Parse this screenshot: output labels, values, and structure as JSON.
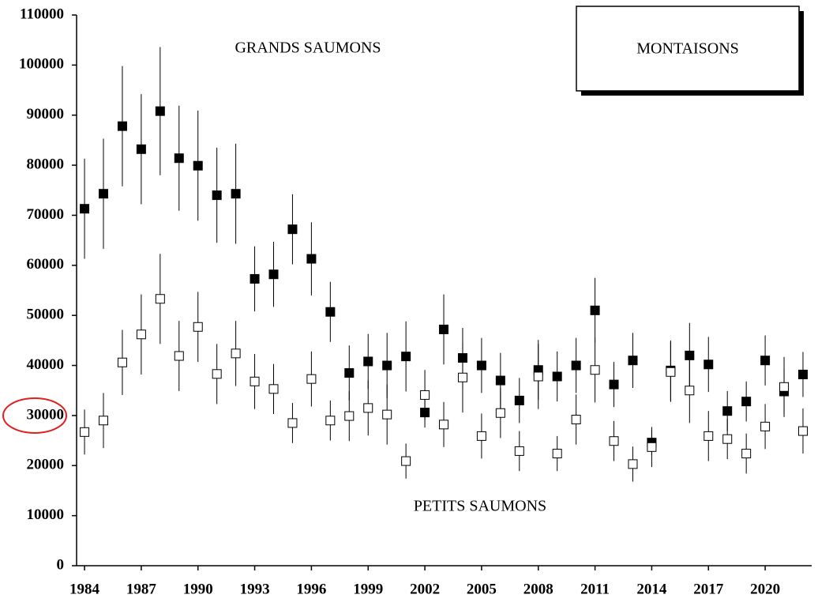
{
  "chart_data": {
    "type": "scatter",
    "title": "MONTAISONS",
    "x": [
      1984,
      1985,
      1986,
      1987,
      1988,
      1989,
      1990,
      1991,
      1992,
      1993,
      1994,
      1995,
      1996,
      1997,
      1998,
      1999,
      2000,
      2001,
      2002,
      2003,
      2004,
      2005,
      2006,
      2007,
      2008,
      2009,
      2010,
      2011,
      2012,
      2013,
      2014,
      2015,
      2016,
      2017,
      2018,
      2019,
      2020,
      2021,
      2022
    ],
    "series": [
      {
        "name": "GRANDS SAUMONS",
        "color": "#000000",
        "marker": "filled",
        "values": [
          71300,
          74300,
          87800,
          83200,
          90800,
          81400,
          79900,
          74000,
          74300,
          57300,
          58200,
          67200,
          61300,
          50700,
          38500,
          40800,
          40000,
          41800,
          30600,
          47200,
          41500,
          40000,
          37000,
          33000,
          39100,
          37800,
          40000,
          51000,
          36200,
          41000,
          24600,
          39000,
          42000,
          40200,
          30900,
          32800,
          41000,
          34800,
          38200
        ],
        "errors": [
          10000,
          11000,
          12000,
          11000,
          12800,
          10500,
          11000,
          9500,
          10000,
          6500,
          6500,
          7000,
          7300,
          6000,
          5500,
          5500,
          6500,
          7000,
          3000,
          7000,
          6000,
          5500,
          5500,
          4500,
          6000,
          5000,
          5500,
          6500,
          4500,
          5500,
          2500,
          6000,
          6500,
          5500,
          4000,
          4000,
          5000,
          4500,
          4500
        ]
      },
      {
        "name": "PETITS SAUMONS",
        "color": "#ffffff",
        "marker": "open",
        "values": [
          26700,
          29000,
          40600,
          46200,
          53300,
          41900,
          47700,
          38300,
          42400,
          36800,
          35300,
          28500,
          37300,
          29000,
          29900,
          31500,
          30200,
          20900,
          34100,
          28200,
          37600,
          25900,
          30500,
          22900,
          37800,
          22400,
          29200,
          39100,
          24900,
          20300,
          23700,
          38700,
          35000,
          25900,
          25300,
          22400,
          27800,
          35700,
          26900
        ],
        "errors": [
          4500,
          5500,
          6500,
          8000,
          9000,
          7000,
          7000,
          6000,
          6500,
          5500,
          5000,
          4000,
          5500,
          4000,
          5000,
          5500,
          6000,
          3500,
          5000,
          4500,
          7000,
          4500,
          5000,
          4000,
          6500,
          3500,
          5000,
          6500,
          4000,
          3500,
          4000,
          6000,
          6500,
          5000,
          4000,
          4000,
          4500,
          6000,
          4500
        ]
      }
    ],
    "xlim": [
      1983.58,
      2022.46
    ],
    "xticks": [
      1984,
      1987,
      1990,
      1993,
      1996,
      1999,
      2002,
      2005,
      2008,
      2011,
      2014,
      2017,
      2020
    ],
    "ylim": [
      0,
      110000
    ],
    "yticks": [
      0,
      10000,
      20000,
      30000,
      40000,
      50000,
      60000,
      70000,
      80000,
      90000,
      100000,
      110000
    ],
    "grid": false
  }
}
